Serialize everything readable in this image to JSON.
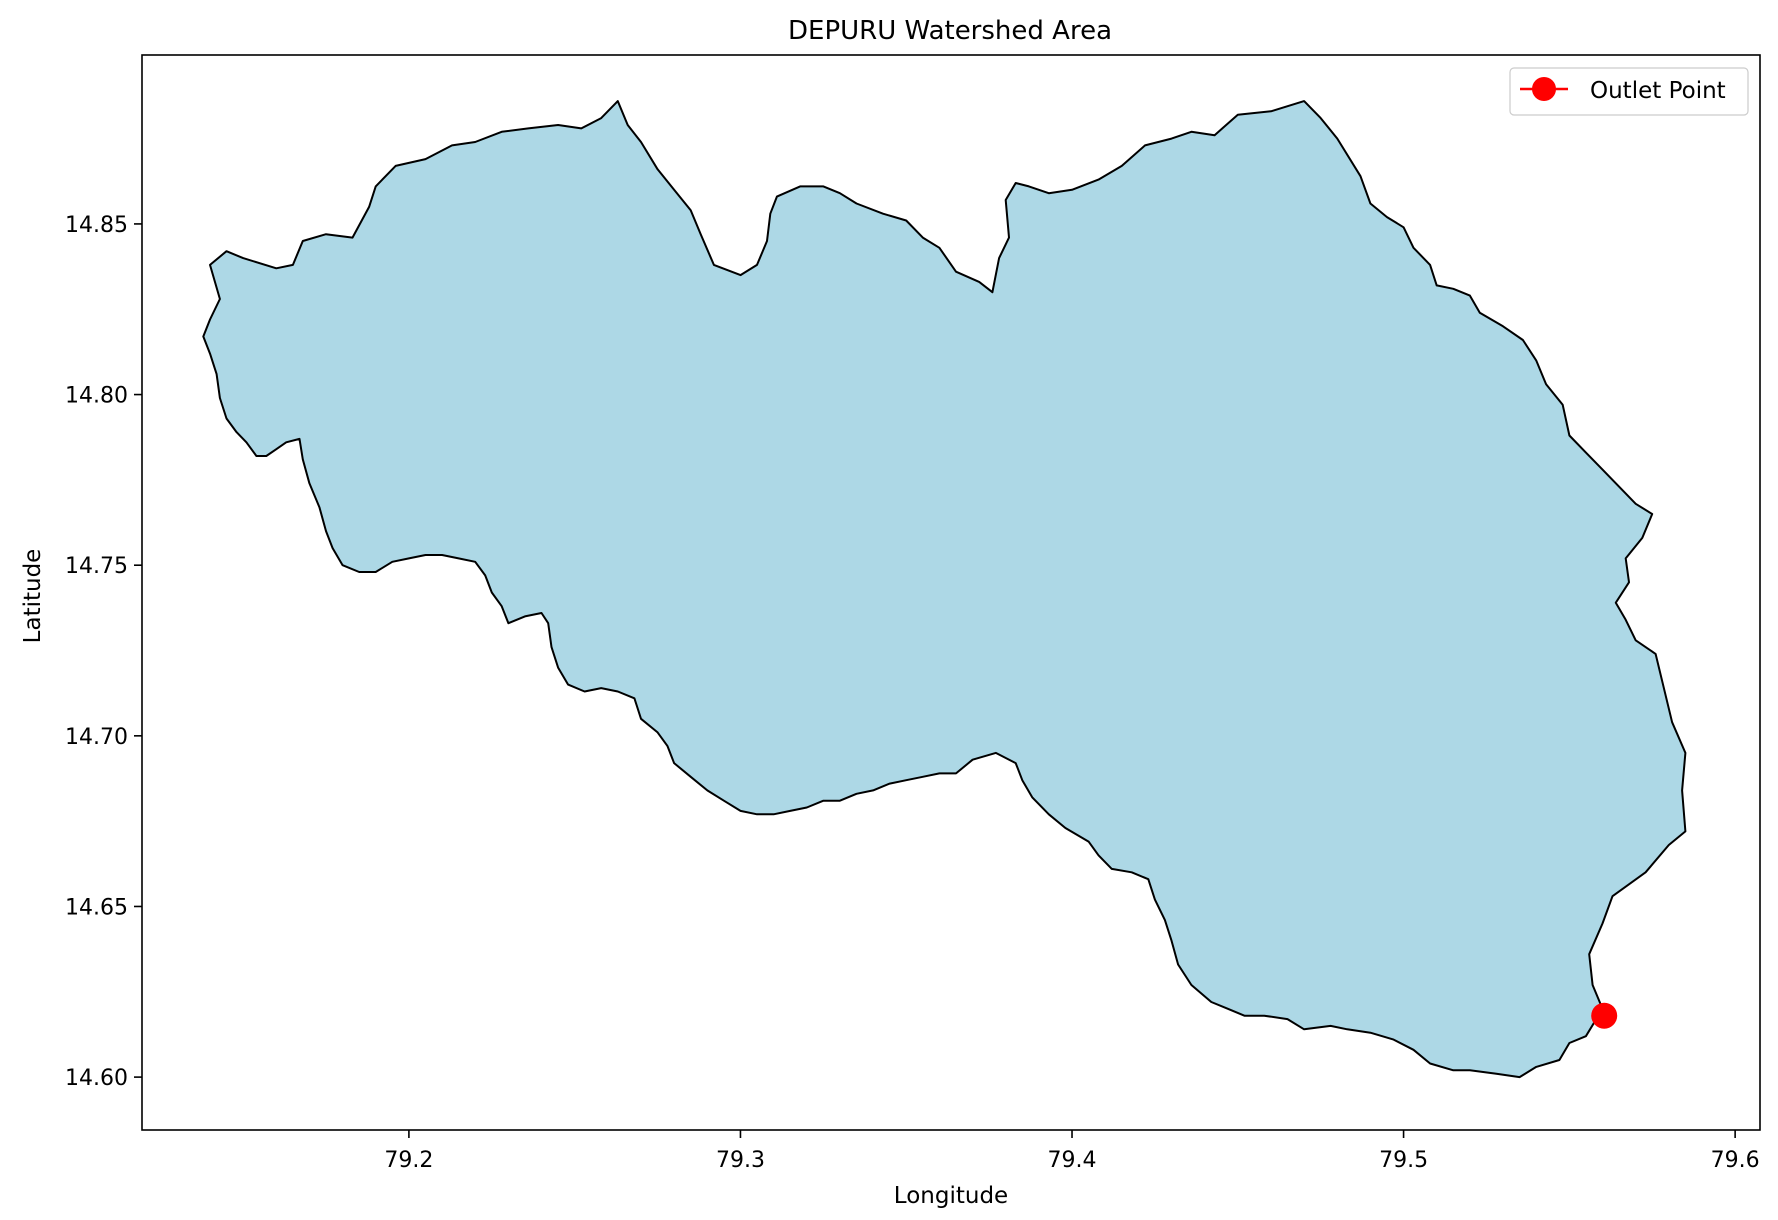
{
  "chart_data": {
    "type": "map",
    "title": "DEPURU Watershed Area",
    "xlabel": "Longitude",
    "ylabel": "Latitude",
    "xlim": [
      79.1195,
      79.6075
    ],
    "ylim": [
      14.5845,
      14.8995
    ],
    "xticks": [
      79.2,
      79.3,
      79.4,
      79.5,
      79.6
    ],
    "xtick_labels": [
      "79.2",
      "79.3",
      "79.4",
      "79.5",
      "79.6"
    ],
    "yticks": [
      14.6,
      14.65,
      14.7,
      14.75,
      14.8,
      14.85
    ],
    "ytick_labels": [
      "14.60",
      "14.65",
      "14.70",
      "14.75",
      "14.80",
      "14.85"
    ],
    "grid": false,
    "legend": {
      "position": "upper right",
      "entries": [
        "Outlet Point"
      ]
    },
    "colors": {
      "fill": "#add8e6",
      "edge": "#000000",
      "outlet": "#ff0000"
    },
    "watershed_boundary": [
      [
        79.14,
        14.838
      ],
      [
        79.145,
        14.842
      ],
      [
        79.15,
        14.84
      ],
      [
        79.16,
        14.837
      ],
      [
        79.165,
        14.838
      ],
      [
        79.168,
        14.845
      ],
      [
        79.175,
        14.847
      ],
      [
        79.183,
        14.846
      ],
      [
        79.188,
        14.855
      ],
      [
        79.19,
        14.861
      ],
      [
        79.196,
        14.867
      ],
      [
        79.205,
        14.869
      ],
      [
        79.213,
        14.873
      ],
      [
        79.22,
        14.874
      ],
      [
        79.228,
        14.877
      ],
      [
        79.236,
        14.878
      ],
      [
        79.245,
        14.879
      ],
      [
        79.252,
        14.878
      ],
      [
        79.258,
        14.881
      ],
      [
        79.263,
        14.886
      ],
      [
        79.266,
        14.879
      ],
      [
        79.27,
        14.874
      ],
      [
        79.275,
        14.866
      ],
      [
        79.28,
        14.86
      ],
      [
        79.285,
        14.854
      ],
      [
        79.288,
        14.847
      ],
      [
        79.292,
        14.838
      ],
      [
        79.3,
        14.835
      ],
      [
        79.305,
        14.838
      ],
      [
        79.308,
        14.845
      ],
      [
        79.309,
        14.853
      ],
      [
        79.311,
        14.858
      ],
      [
        79.318,
        14.861
      ],
      [
        79.325,
        14.861
      ],
      [
        79.33,
        14.859
      ],
      [
        79.335,
        14.856
      ],
      [
        79.343,
        14.853
      ],
      [
        79.35,
        14.851
      ],
      [
        79.355,
        14.846
      ],
      [
        79.36,
        14.843
      ],
      [
        79.365,
        14.836
      ],
      [
        79.372,
        14.833
      ],
      [
        79.376,
        14.83
      ],
      [
        79.378,
        14.84
      ],
      [
        79.381,
        14.846
      ],
      [
        79.38,
        14.857
      ],
      [
        79.383,
        14.862
      ],
      [
        79.387,
        14.861
      ],
      [
        79.393,
        14.859
      ],
      [
        79.4,
        14.86
      ],
      [
        79.408,
        14.863
      ],
      [
        79.415,
        14.867
      ],
      [
        79.422,
        14.873
      ],
      [
        79.43,
        14.875
      ],
      [
        79.436,
        14.877
      ],
      [
        79.443,
        14.876
      ],
      [
        79.45,
        14.882
      ],
      [
        79.46,
        14.883
      ],
      [
        79.47,
        14.886
      ],
      [
        79.475,
        14.881
      ],
      [
        79.48,
        14.875
      ],
      [
        79.487,
        14.864
      ],
      [
        79.49,
        14.856
      ],
      [
        79.495,
        14.852
      ],
      [
        79.5,
        14.849
      ],
      [
        79.503,
        14.843
      ],
      [
        79.508,
        14.838
      ],
      [
        79.51,
        14.832
      ],
      [
        79.515,
        14.831
      ],
      [
        79.52,
        14.829
      ],
      [
        79.523,
        14.824
      ],
      [
        79.53,
        14.82
      ],
      [
        79.536,
        14.816
      ],
      [
        79.54,
        14.81
      ],
      [
        79.543,
        14.803
      ],
      [
        79.548,
        14.797
      ],
      [
        79.55,
        14.788
      ],
      [
        79.555,
        14.783
      ],
      [
        79.56,
        14.778
      ],
      [
        79.565,
        14.773
      ],
      [
        79.57,
        14.768
      ],
      [
        79.575,
        14.765
      ],
      [
        79.572,
        14.758
      ],
      [
        79.567,
        14.752
      ],
      [
        79.568,
        14.745
      ],
      [
        79.564,
        14.739
      ],
      [
        79.567,
        14.734
      ],
      [
        79.57,
        14.728
      ],
      [
        79.576,
        14.724
      ],
      [
        79.578,
        14.716
      ],
      [
        79.581,
        14.704
      ],
      [
        79.585,
        14.695
      ],
      [
        79.584,
        14.684
      ],
      [
        79.585,
        14.672
      ],
      [
        79.58,
        14.668
      ],
      [
        79.573,
        14.66
      ],
      [
        79.563,
        14.653
      ],
      [
        79.56,
        14.645
      ],
      [
        79.556,
        14.636
      ],
      [
        79.557,
        14.627
      ],
      [
        79.56,
        14.62
      ],
      [
        79.555,
        14.612
      ],
      [
        79.55,
        14.61
      ],
      [
        79.547,
        14.605
      ],
      [
        79.54,
        14.603
      ],
      [
        79.535,
        14.6
      ],
      [
        79.528,
        14.601
      ],
      [
        79.52,
        14.602
      ],
      [
        79.515,
        14.602
      ],
      [
        79.508,
        14.604
      ],
      [
        79.503,
        14.608
      ],
      [
        79.497,
        14.611
      ],
      [
        79.49,
        14.613
      ],
      [
        79.483,
        14.614
      ],
      [
        79.478,
        14.615
      ],
      [
        79.47,
        14.614
      ],
      [
        79.465,
        14.617
      ],
      [
        79.458,
        14.618
      ],
      [
        79.452,
        14.618
      ],
      [
        79.447,
        14.62
      ],
      [
        79.442,
        14.622
      ],
      [
        79.436,
        14.627
      ],
      [
        79.432,
        14.633
      ],
      [
        79.43,
        14.64
      ],
      [
        79.428,
        14.646
      ],
      [
        79.425,
        14.652
      ],
      [
        79.423,
        14.658
      ],
      [
        79.418,
        14.66
      ],
      [
        79.412,
        14.661
      ],
      [
        79.408,
        14.665
      ],
      [
        79.405,
        14.669
      ],
      [
        79.398,
        14.673
      ],
      [
        79.393,
        14.677
      ],
      [
        79.388,
        14.682
      ],
      [
        79.385,
        14.687
      ],
      [
        79.383,
        14.692
      ],
      [
        79.377,
        14.695
      ],
      [
        79.37,
        14.693
      ],
      [
        79.365,
        14.689
      ],
      [
        79.36,
        14.689
      ],
      [
        79.355,
        14.688
      ],
      [
        79.35,
        14.687
      ],
      [
        79.345,
        14.686
      ],
      [
        79.34,
        14.684
      ],
      [
        79.335,
        14.683
      ],
      [
        79.33,
        14.681
      ],
      [
        79.325,
        14.681
      ],
      [
        79.32,
        14.679
      ],
      [
        79.315,
        14.678
      ],
      [
        79.31,
        14.677
      ],
      [
        79.305,
        14.677
      ],
      [
        79.3,
        14.678
      ],
      [
        79.295,
        14.681
      ],
      [
        79.29,
        14.684
      ],
      [
        79.285,
        14.688
      ],
      [
        79.28,
        14.692
      ],
      [
        79.278,
        14.697
      ],
      [
        79.275,
        14.701
      ],
      [
        79.27,
        14.705
      ],
      [
        79.268,
        14.711
      ],
      [
        79.263,
        14.713
      ],
      [
        79.258,
        14.714
      ],
      [
        79.253,
        14.713
      ],
      [
        79.248,
        14.715
      ],
      [
        79.245,
        14.72
      ],
      [
        79.243,
        14.726
      ],
      [
        79.242,
        14.733
      ],
      [
        79.24,
        14.736
      ],
      [
        79.235,
        14.735
      ],
      [
        79.23,
        14.733
      ],
      [
        79.228,
        14.738
      ],
      [
        79.225,
        14.742
      ],
      [
        79.223,
        14.747
      ],
      [
        79.22,
        14.751
      ],
      [
        79.215,
        14.752
      ],
      [
        79.21,
        14.753
      ],
      [
        79.205,
        14.753
      ],
      [
        79.2,
        14.752
      ],
      [
        79.195,
        14.751
      ],
      [
        79.19,
        14.748
      ],
      [
        79.185,
        14.748
      ],
      [
        79.18,
        14.75
      ],
      [
        79.177,
        14.755
      ],
      [
        79.175,
        14.76
      ],
      [
        79.173,
        14.767
      ],
      [
        79.17,
        14.774
      ],
      [
        79.168,
        14.781
      ],
      [
        79.167,
        14.787
      ],
      [
        79.163,
        14.786
      ],
      [
        79.16,
        14.784
      ],
      [
        79.157,
        14.782
      ],
      [
        79.154,
        14.782
      ],
      [
        79.151,
        14.786
      ],
      [
        79.148,
        14.789
      ],
      [
        79.145,
        14.793
      ],
      [
        79.143,
        14.799
      ],
      [
        79.142,
        14.806
      ],
      [
        79.14,
        14.812
      ],
      [
        79.138,
        14.817
      ],
      [
        79.14,
        14.822
      ],
      [
        79.143,
        14.828
      ],
      [
        79.14,
        14.838
      ]
    ],
    "outlet_point": {
      "label": "Outlet Point",
      "lon": 79.5605,
      "lat": 14.618
    }
  }
}
